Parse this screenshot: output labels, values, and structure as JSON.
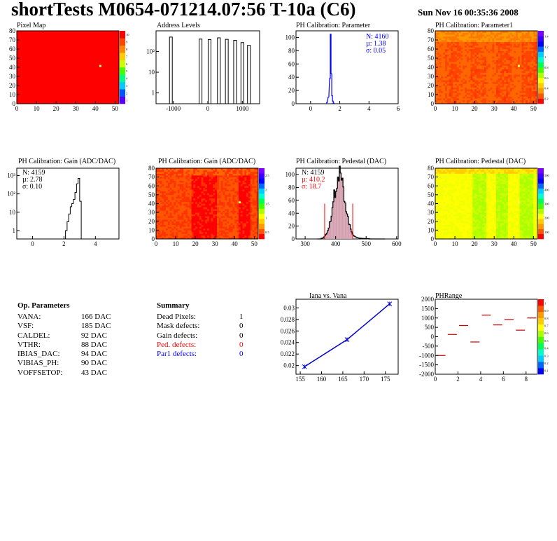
{
  "header": {
    "title": "shortTests M0654-071214.07:56 T-10a (C6)",
    "date": "Sun Nov 16 00:35:36 2008"
  },
  "colors": {
    "red": "#ff0000",
    "orange": "#ff6600",
    "yellowgreen": "#aaff00",
    "blue": "#0000ff"
  },
  "chart_data": [
    {
      "id": "pixel_map",
      "type": "heatmap",
      "title": "Pixel Map",
      "xlim": [
        0,
        52
      ],
      "ylim": [
        0,
        80
      ],
      "xticks": [
        "0",
        "10",
        "20",
        "30",
        "40",
        "50"
      ],
      "yticks": [
        "0",
        "10",
        "20",
        "30",
        "40",
        "50",
        "60",
        "70",
        "80"
      ],
      "fill": "#ff0000",
      "palette_ticks": [
        "10",
        "9",
        "8",
        "7",
        "6",
        "5",
        "4",
        "3",
        "2",
        "1"
      ],
      "hot_pixel": [
        42,
        41
      ]
    },
    {
      "id": "address_levels",
      "type": "bar",
      "title": "Address Levels",
      "log_y": true,
      "xlim": [
        -1500,
        1500
      ],
      "xticks": [
        "-1000",
        "0",
        "1000"
      ],
      "yticks": [
        "1",
        "10",
        "10²"
      ],
      "peaks": [
        -1070,
        -210,
        50,
        320,
        550,
        790,
        1000,
        1190
      ],
      "peak_heights": [
        500,
        400,
        380,
        460,
        390,
        350,
        270,
        200
      ]
    },
    {
      "id": "ph_param",
      "type": "bar",
      "title": "PH Calibration: Parameter",
      "xlim": [
        -1,
        6
      ],
      "ylim": [
        0,
        110
      ],
      "xticks": [
        "0",
        "2",
        "4",
        "6"
      ],
      "yticks": [
        "0",
        "10",
        "20",
        "30",
        "40",
        "50",
        "60",
        "70",
        "80",
        "90",
        "100"
      ],
      "stats": [
        "N: 4160",
        "µ: 1.38",
        "σ: 0.05"
      ],
      "stats_color": "#0000ff",
      "x": [
        1.1,
        1.2,
        1.3,
        1.35,
        1.4,
        1.45,
        1.5,
        1.55,
        1.6
      ],
      "y": [
        2,
        10,
        38,
        105,
        45,
        12,
        4,
        1,
        0
      ]
    },
    {
      "id": "ph_param1",
      "type": "heatmap",
      "title": "PH Calibration: Parameter1",
      "xlim": [
        0,
        52
      ],
      "ylim": [
        0,
        80
      ],
      "xticks": [
        "0",
        "10",
        "20",
        "30",
        "40",
        "50"
      ],
      "yticks": [
        "0",
        "10",
        "20",
        "30",
        "40",
        "50",
        "60",
        "70",
        "80"
      ],
      "palette_ticks": [
        "1.4",
        "1.2",
        "1",
        "0.8",
        "0.6",
        "0.4",
        "0.2"
      ],
      "hot_pixel": [
        42,
        41
      ]
    },
    {
      "id": "gain_hist",
      "type": "bar",
      "title": "PH Calibration: Gain (ADC/DAC)",
      "log_y": true,
      "xlim": [
        -1,
        5.5
      ],
      "xticks": [
        "0",
        "2",
        "4"
      ],
      "yticks": [
        "1",
        "10",
        "10²",
        "10³"
      ],
      "stats": [
        "N: 4159",
        "µ: 2.78",
        "σ: 0.10"
      ],
      "stats_color": "#000000",
      "x": [
        2.1,
        2.2,
        2.3,
        2.4,
        2.5,
        2.6,
        2.7,
        2.8,
        2.9,
        3.0
      ],
      "y": [
        1,
        3,
        8,
        20,
        30,
        50,
        120,
        350,
        700,
        40
      ]
    },
    {
      "id": "gain_map",
      "type": "heatmap",
      "title": "PH Calibration: Gain (ADC/DAC)",
      "xlim": [
        0,
        52
      ],
      "ylim": [
        0,
        80
      ],
      "xticks": [
        "0",
        "10",
        "20",
        "30",
        "40",
        "50"
      ],
      "yticks": [
        "0",
        "10",
        "20",
        "30",
        "40",
        "50",
        "60",
        "70",
        "80"
      ],
      "palette_ticks": [
        "2.5",
        "2",
        "1.5",
        "1",
        "0.5"
      ],
      "hot_pixel": [
        42,
        41
      ]
    },
    {
      "id": "pedestal_hist",
      "type": "bar",
      "title": "PH Calibration: Pedestal (DAC)",
      "xlim": [
        270,
        605
      ],
      "ylim": [
        0,
        110
      ],
      "xticks": [
        "300",
        "400",
        "500",
        "600"
      ],
      "yticks": [
        "0",
        "20",
        "40",
        "60",
        "80",
        "100"
      ],
      "stats": [
        "N: 4159",
        "µ: 410.2",
        "σ: 18.7"
      ],
      "stats_color": "#ff0000",
      "cut_lines": [
        364,
        456
      ],
      "mean": 410,
      "sigma": 19,
      "peak": 95
    },
    {
      "id": "pedestal_map",
      "type": "heatmap",
      "title": "PH Calibration: Pedestal (DAC)",
      "xlim": [
        0,
        52
      ],
      "ylim": [
        0,
        80
      ],
      "xticks": [
        "0",
        "10",
        "20",
        "30",
        "40",
        "50"
      ],
      "yticks": [
        "0",
        "10",
        "20",
        "30",
        "40",
        "50",
        "60",
        "70",
        "80"
      ],
      "palette_ticks": [
        "500",
        "400",
        "300",
        "200",
        "100"
      ],
      "hot_pixel": [
        42,
        41
      ]
    },
    {
      "id": "iana_vana",
      "type": "line",
      "title": "Iana vs. Vana",
      "xlim": [
        154,
        178
      ],
      "ylim": [
        0.0185,
        0.0315
      ],
      "xticks": [
        "155",
        "160",
        "165",
        "170",
        "175"
      ],
      "yticks": [
        "0.02",
        "0.022",
        "0.024",
        "0.026",
        "0.028",
        "0.03"
      ],
      "x": [
        156,
        166,
        176
      ],
      "y": [
        0.0198,
        0.0245,
        0.0307
      ]
    },
    {
      "id": "phrange",
      "type": "scatter",
      "title": "PHRange",
      "xlim": [
        0,
        9
      ],
      "ylim": [
        -2000,
        2000
      ],
      "xticks": [
        "0",
        "2",
        "4",
        "6",
        "8"
      ],
      "yticks": [
        "2000",
        "1500",
        "1000",
        "500",
        "0",
        "-500",
        "-1000",
        "-1500",
        "-2000"
      ],
      "palette_ticks": [
        "1",
        "0.9",
        "0.8",
        "0.7",
        "0.6",
        "0.5",
        "0.4",
        "0.3",
        "0.2",
        "0.1"
      ],
      "x": [
        0.5,
        1.5,
        2.5,
        3.5,
        4.5,
        5.5,
        6.5,
        7.5,
        8.5
      ],
      "y": [
        -1000,
        120,
        600,
        -280,
        1150,
        630,
        920,
        350,
        1000
      ]
    }
  ],
  "op_params": {
    "heading": "Op. Parameters",
    "rows": [
      {
        "name": "VANA:",
        "value": "166 DAC"
      },
      {
        "name": "VSF:",
        "value": "185 DAC"
      },
      {
        "name": "CALDEL:",
        "value": "92 DAC"
      },
      {
        "name": "VTHR:",
        "value": "88 DAC"
      },
      {
        "name": "IBIAS_DAC:",
        "value": "94 DAC"
      },
      {
        "name": "VIBIAS_PH:",
        "value": "90 DAC"
      },
      {
        "name": "VOFFSETOP:",
        "value": "43 DAC"
      }
    ]
  },
  "summary": {
    "heading": "Summary",
    "rows": [
      {
        "name": "Dead Pixels:",
        "value": "1",
        "color": "#000000"
      },
      {
        "name": "Mask defects:",
        "value": "0",
        "color": "#000000"
      },
      {
        "name": "Gain defects:",
        "value": "0",
        "color": "#000000"
      },
      {
        "name": "Ped. defects:",
        "value": "0",
        "color": "#ff0000"
      },
      {
        "name": "Par1 defects:",
        "value": "0",
        "color": "#0000ff"
      }
    ]
  }
}
